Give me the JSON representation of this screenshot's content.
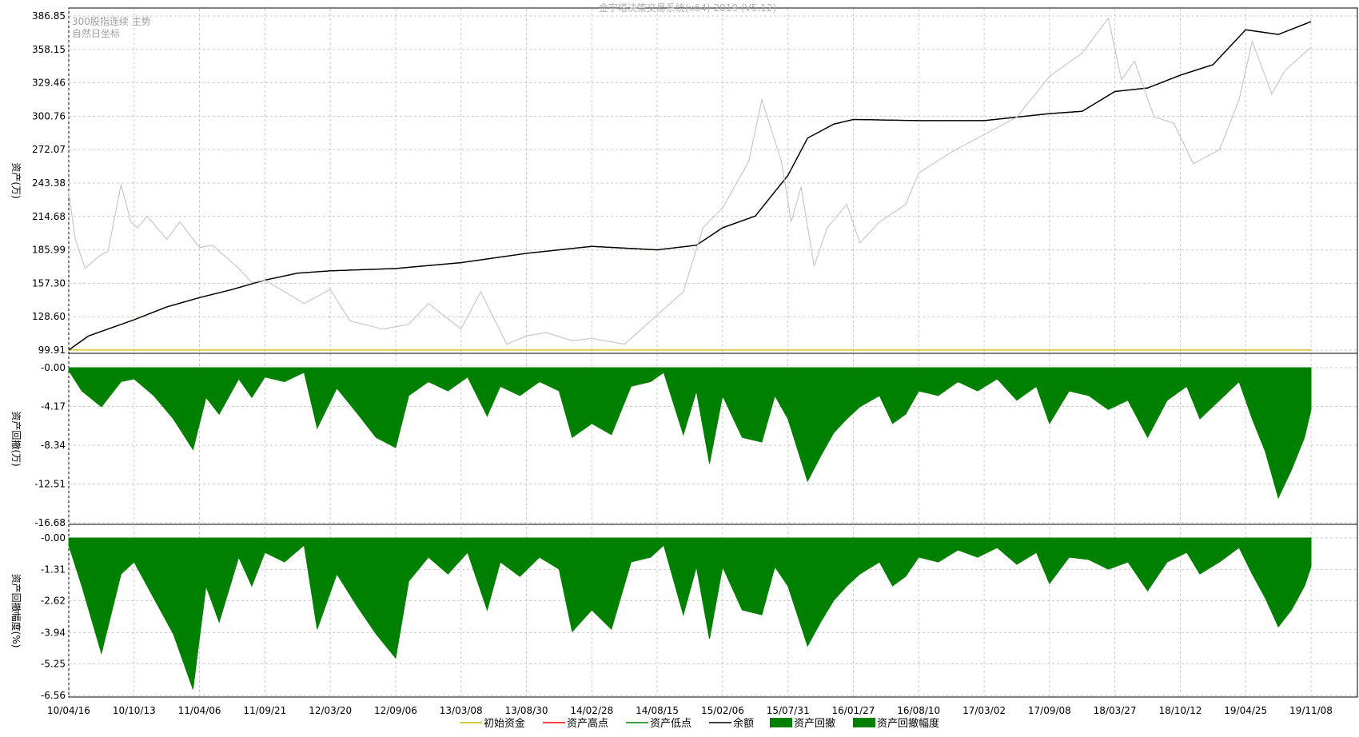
{
  "chart_data": {
    "type": "line",
    "title": "金宇塔决策交易系统(x64) 2019 (V5.12)",
    "subtitle_lines": [
      "300股指连续 主势",
      "自然日坐标"
    ],
    "x_ticks": [
      "10/04/16",
      "10/10/13",
      "11/04/06",
      "11/09/21",
      "12/03/20",
      "12/09/06",
      "13/03/08",
      "13/08/30",
      "14/02/28",
      "14/08/15",
      "15/02/06",
      "15/07/31",
      "16/01/27",
      "16/08/10",
      "17/03/02",
      "17/09/08",
      "18/03/27",
      "18/10/12",
      "19/04/25",
      "19/11/08"
    ],
    "panels": [
      {
        "ylabel": "资产(万)",
        "ylim": [
          99.91,
          386.85
        ],
        "y_ticks": [
          "386.85",
          "358.15",
          "329.46",
          "300.76",
          "272.07",
          "243.38",
          "214.68",
          "185.99",
          "157.30",
          "128.60",
          "99.91"
        ],
        "series": [
          {
            "name": "初始资金",
            "color": "#d4b400",
            "x": [
              0,
              19
            ],
            "values": [
              100,
              100
            ]
          },
          {
            "name": "资产高点",
            "color": "#ff0000",
            "x": [
              0,
              0.3,
              1,
              1.5,
              2,
              2.5,
              3,
              3.5,
              4,
              5,
              6,
              7,
              8,
              9,
              9.6,
              10,
              10.5,
              11,
              11.3,
              11.7,
              12,
              13,
              14,
              15,
              15.5,
              16,
              16.5,
              17,
              17.5,
              18,
              18.5,
              19
            ],
            "values": [
              100,
              112,
              126,
              137,
              145,
              152,
              160,
              166,
              168,
              170,
              175,
              183,
              189,
              186,
              190,
              205,
              215,
              250,
              282,
              294,
              298,
              297,
              297,
              303,
              305,
              322,
              325,
              336,
              345,
              375,
              371,
              382
            ]
          },
          {
            "name": "资产低点",
            "color": "#008000",
            "x": [
              0,
              0.3,
              1,
              1.5,
              2,
              2.5,
              3,
              3.5,
              4,
              5,
              6,
              7,
              8,
              9,
              9.6,
              10,
              10.5,
              11,
              11.3,
              11.7,
              12,
              13,
              14,
              15,
              15.5,
              16,
              16.5,
              17,
              17.5,
              18,
              18.5,
              19
            ],
            "values": [
              100,
              112,
              126,
              137,
              145,
              152,
              160,
              166,
              168,
              170,
              175,
              183,
              189,
              186,
              190,
              205,
              215,
              250,
              282,
              294,
              298,
              297,
              297,
              303,
              305,
              322,
              325,
              336,
              345,
              375,
              371,
              382
            ]
          },
          {
            "name": "余额",
            "color": "#000000",
            "x": [
              0,
              0.3,
              1,
              1.5,
              2,
              2.5,
              3,
              3.5,
              4,
              5,
              6,
              7,
              8,
              9,
              9.6,
              10,
              10.5,
              11,
              11.3,
              11.7,
              12,
              13,
              14,
              15,
              15.5,
              16,
              16.5,
              17,
              17.5,
              18,
              18.5,
              19
            ],
            "values": [
              100,
              112,
              126,
              137,
              145,
              152,
              160,
              166,
              168,
              170,
              175,
              183,
              189,
              186,
              190,
              205,
              215,
              250,
              282,
              294,
              298,
              297,
              297,
              303,
              305,
              322,
              325,
              336,
              345,
              375,
              371,
              382
            ]
          },
          {
            "name": "300股指连续",
            "color": "#c8c8c8",
            "x": [
              0,
              0.1,
              0.25,
              0.45,
              0.6,
              0.8,
              0.95,
              1.05,
              1.2,
              1.5,
              1.7,
              2.0,
              2.2,
              2.6,
              2.8,
              3.0,
              3.3,
              3.6,
              4.0,
              4.3,
              4.8,
              5.2,
              5.5,
              6.0,
              6.3,
              6.7,
              7.0,
              7.3,
              7.7,
              8.0,
              8.5,
              9.0,
              9.4,
              9.7,
              10.0,
              10.4,
              10.6,
              10.9,
              11.05,
              11.2,
              11.4,
              11.6,
              11.9,
              12.1,
              12.4,
              12.8,
              13.0,
              13.5,
              14.0,
              14.5,
              15.0,
              15.5,
              15.9,
              16.1,
              16.3,
              16.6,
              16.9,
              17.2,
              17.6,
              17.9,
              18.1,
              18.4,
              18.6,
              18.8,
              19.0
            ],
            "values": [
              235,
              195,
              170,
              180,
              185,
              242,
              210,
              205,
              215,
              195,
              210,
              188,
              190,
              170,
              158,
              160,
              150,
              140,
              152,
              125,
              118,
              122,
              140,
              118,
              150,
              105,
              112,
              115,
              108,
              110,
              105,
              130,
              150,
              205,
              222,
              262,
              315,
              262,
              210,
              240,
              172,
              205,
              225,
              192,
              210,
              225,
              252,
              270,
              285,
              300,
              335,
              355,
              385,
              332,
              348,
              300,
              295,
              260,
              272,
              315,
              365,
              320,
              340,
              350,
              360
            ]
          }
        ]
      },
      {
        "ylabel": "资产回撤(万)",
        "ylim": [
          -16.68,
          -0.0
        ],
        "y_ticks": [
          "-0.00",
          "-4.17",
          "-8.34",
          "-12.51",
          "-16.68"
        ],
        "series": [
          {
            "name": "资产回撤",
            "color": "#008000",
            "x": [
              0,
              0.2,
              0.5,
              0.8,
              1.0,
              1.3,
              1.6,
              1.9,
              2.1,
              2.3,
              2.6,
              2.8,
              3.0,
              3.3,
              3.6,
              3.8,
              4.1,
              4.4,
              4.7,
              5.0,
              5.2,
              5.5,
              5.8,
              6.1,
              6.4,
              6.6,
              6.9,
              7.2,
              7.5,
              7.7,
              8.0,
              8.3,
              8.6,
              8.9,
              9.1,
              9.4,
              9.6,
              9.8,
              10.0,
              10.3,
              10.6,
              10.8,
              11.0,
              11.3,
              11.5,
              11.7,
              11.9,
              12.1,
              12.4,
              12.6,
              12.8,
              13.0,
              13.3,
              13.6,
              13.9,
              14.2,
              14.5,
              14.8,
              15.0,
              15.3,
              15.6,
              15.9,
              16.2,
              16.5,
              16.8,
              17.1,
              17.3,
              17.6,
              17.9,
              18.1,
              18.3,
              18.5,
              18.7,
              18.9,
              19.0
            ],
            "values": [
              -0.3,
              -2.5,
              -4.2,
              -1.5,
              -1.2,
              -3.0,
              -5.5,
              -8.8,
              -3.2,
              -5.0,
              -1.2,
              -3.2,
              -1.0,
              -1.5,
              -0.5,
              -6.5,
              -2.2,
              -4.8,
              -7.5,
              -8.6,
              -3.0,
              -1.5,
              -2.5,
              -1.0,
              -5.2,
              -2.0,
              -3.0,
              -1.5,
              -2.5,
              -7.5,
              -6.0,
              -7.2,
              -2.0,
              -1.5,
              -0.5,
              -7.2,
              -2.5,
              -10.3,
              -3.0,
              -7.5,
              -8.0,
              -3.0,
              -5.5,
              -12.2,
              -9.5,
              -7.0,
              -5.5,
              -4.2,
              -3.0,
              -6.0,
              -5.0,
              -2.5,
              -3.0,
              -1.5,
              -2.5,
              -1.2,
              -3.5,
              -2.0,
              -6.0,
              -2.5,
              -3.0,
              -4.5,
              -3.5,
              -7.5,
              -3.5,
              -2.0,
              -5.5,
              -3.5,
              -1.5,
              -5.5,
              -9.0,
              -14.0,
              -11.0,
              -7.5,
              -4.5
            ]
          }
        ]
      },
      {
        "ylabel": "资产回撤幅度(%)",
        "ylim": [
          -6.56,
          -0.0
        ],
        "y_ticks": [
          "-0.00",
          "-1.31",
          "-2.62",
          "-3.94",
          "-5.25",
          "-6.56"
        ],
        "series": [
          {
            "name": "资产回撤幅度",
            "color": "#008000",
            "x": [
              0,
              0.2,
              0.5,
              0.8,
              1.0,
              1.3,
              1.6,
              1.9,
              2.1,
              2.3,
              2.6,
              2.8,
              3.0,
              3.3,
              3.6,
              3.8,
              4.1,
              4.4,
              4.7,
              5.0,
              5.2,
              5.5,
              5.8,
              6.1,
              6.4,
              6.6,
              6.9,
              7.2,
              7.5,
              7.7,
              8.0,
              8.3,
              8.6,
              8.9,
              9.1,
              9.4,
              9.6,
              9.8,
              10.0,
              10.3,
              10.6,
              10.8,
              11.0,
              11.3,
              11.5,
              11.7,
              11.9,
              12.1,
              12.4,
              12.6,
              12.8,
              13.0,
              13.3,
              13.6,
              13.9,
              14.2,
              14.5,
              14.8,
              15.0,
              15.3,
              15.6,
              15.9,
              16.2,
              16.5,
              16.8,
              17.1,
              17.3,
              17.6,
              17.9,
              18.1,
              18.3,
              18.5,
              18.7,
              18.9,
              19.0
            ],
            "values": [
              -0.3,
              -2.0,
              -4.8,
              -1.5,
              -1.0,
              -2.5,
              -4.0,
              -6.3,
              -2.0,
              -3.5,
              -0.8,
              -2.0,
              -0.6,
              -1.0,
              -0.3,
              -3.8,
              -1.5,
              -2.8,
              -4.0,
              -5.0,
              -1.8,
              -0.8,
              -1.5,
              -0.6,
              -3.0,
              -1.0,
              -1.6,
              -0.8,
              -1.3,
              -3.9,
              -3.0,
              -3.8,
              -1.0,
              -0.8,
              -0.3,
              -3.2,
              -1.2,
              -4.2,
              -1.2,
              -3.0,
              -3.2,
              -1.2,
              -2.0,
              -4.5,
              -3.5,
              -2.6,
              -2.0,
              -1.5,
              -1.0,
              -2.0,
              -1.6,
              -0.8,
              -1.0,
              -0.5,
              -0.8,
              -0.4,
              -1.1,
              -0.6,
              -1.9,
              -0.8,
              -0.9,
              -1.3,
              -1.0,
              -2.2,
              -1.0,
              -0.6,
              -1.5,
              -1.0,
              -0.4,
              -1.5,
              -2.5,
              -3.7,
              -3.0,
              -2.0,
              -1.2
            ]
          }
        ]
      }
    ],
    "legend": {
      "placement": "bottom-center",
      "entries": [
        "初始资金",
        "资产高点",
        "资产低点",
        "余额",
        "资产回撤",
        "资产回撤幅度"
      ]
    }
  }
}
